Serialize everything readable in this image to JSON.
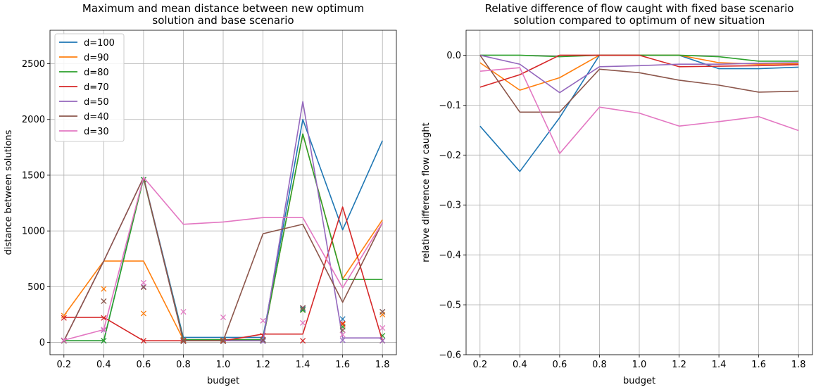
{
  "chart_data": [
    {
      "type": "line",
      "title": "Maximum and mean distance between new optimum\nsolution and base scenario",
      "xlabel": "budget",
      "ylabel": "distance between solutions",
      "xlim": [
        0.13,
        1.87
      ],
      "ylim": [
        -110,
        2800
      ],
      "xticks": [
        0.2,
        0.4,
        0.6,
        0.8,
        1.0,
        1.2,
        1.4,
        1.6,
        1.8
      ],
      "xtick_labels": [
        "0.2",
        "0.4",
        "0.6",
        "0.8",
        "1.0",
        "1.2",
        "1.4",
        "1.6",
        "1.8"
      ],
      "yticks": [
        0,
        500,
        1000,
        1500,
        2000,
        2500
      ],
      "ytick_labels": [
        "0",
        "500",
        "1000",
        "1500",
        "2000",
        "2500"
      ],
      "grid": true,
      "legend": "top-left",
      "x": [
        0.2,
        0.4,
        0.6,
        0.8,
        1.0,
        1.2,
        1.4,
        1.6,
        1.8
      ],
      "series": [
        {
          "name": "d=100",
          "color": "#1f77b4",
          "values": [
            15,
            15,
            1480,
            45,
            45,
            45,
            2000,
            1010,
            1810
          ],
          "markers": [
            15,
            15,
            1460,
            25,
            25,
            25,
            300,
            210,
            275
          ]
        },
        {
          "name": "d=90",
          "color": "#ff7f0e",
          "values": [
            240,
            730,
            730,
            25,
            25,
            25,
            1870,
            570,
            1100
          ],
          "markers": [
            240,
            480,
            260,
            20,
            20,
            20,
            290,
            160,
            250
          ]
        },
        {
          "name": "d=80",
          "color": "#2ca02c",
          "values": [
            15,
            15,
            1470,
            25,
            25,
            25,
            1870,
            565,
            565
          ],
          "markers": [
            15,
            15,
            1460,
            15,
            15,
            15,
            290,
            140,
            60
          ]
        },
        {
          "name": "d=70",
          "color": "#d62728",
          "values": [
            225,
            225,
            15,
            15,
            15,
            75,
            75,
            1215,
            15
          ],
          "markers": [
            220,
            220,
            15,
            15,
            15,
            60,
            15,
            170,
            15
          ]
        },
        {
          "name": "d=50",
          "color": "#9467bd",
          "values": [
            15,
            730,
            1480,
            15,
            15,
            15,
            2160,
            40,
            40
          ],
          "markers": [
            15,
            110,
            500,
            10,
            10,
            10,
            310,
            20,
            15
          ]
        },
        {
          "name": "d=40",
          "color": "#8c564b",
          "values": [
            15,
            730,
            1480,
            15,
            15,
            975,
            1060,
            360,
            1075
          ],
          "markers": [
            15,
            370,
            495,
            10,
            10,
            20,
            310,
            110,
            275
          ]
        },
        {
          "name": "d=30",
          "color": "#e377c2",
          "values": [
            20,
            115,
            1480,
            1060,
            1080,
            1120,
            1120,
            490,
            1075
          ],
          "markers": [
            20,
            115,
            535,
            275,
            225,
            195,
            175,
            70,
            130
          ]
        }
      ]
    },
    {
      "type": "line",
      "title": "Relative difference of flow caught with fixed base scenario\nsolution compared to optimum of new situation",
      "xlabel": "budget",
      "ylabel": "relative difference flow caught",
      "xlim": [
        0.13,
        1.87
      ],
      "ylim": [
        -0.6,
        0.05
      ],
      "xticks": [
        0.2,
        0.4,
        0.6,
        0.8,
        1.0,
        1.2,
        1.4,
        1.6,
        1.8
      ],
      "xtick_labels": [
        "0.2",
        "0.4",
        "0.6",
        "0.8",
        "1.0",
        "1.2",
        "1.4",
        "1.6",
        "1.8"
      ],
      "yticks": [
        0.0,
        -0.1,
        -0.2,
        -0.3,
        -0.4,
        -0.5,
        -0.6
      ],
      "ytick_labels": [
        "0.0",
        "−0.1",
        "−0.2",
        "−0.3",
        "−0.4",
        "−0.5",
        "−0.6"
      ],
      "grid": true,
      "x": [
        0.2,
        0.4,
        0.6,
        0.8,
        1.0,
        1.2,
        1.4,
        1.6,
        1.8
      ],
      "series": [
        {
          "color": "#1f77b4",
          "values": [
            -0.142,
            -0.233,
            -0.125,
            0.0,
            0.0,
            0.0,
            -0.027,
            -0.027,
            -0.024
          ]
        },
        {
          "color": "#ff7f0e",
          "values": [
            -0.015,
            -0.07,
            -0.045,
            0.0,
            0.0,
            0.0,
            -0.015,
            -0.018,
            -0.017
          ]
        },
        {
          "color": "#2ca02c",
          "values": [
            0.0,
            0.0,
            -0.003,
            0.0,
            0.0,
            0.0,
            -0.003,
            -0.012,
            -0.012
          ]
        },
        {
          "color": "#d62728",
          "values": [
            -0.064,
            -0.039,
            0.0,
            0.0,
            0.0,
            -0.023,
            -0.022,
            -0.021,
            -0.019
          ]
        },
        {
          "color": "#9467bd",
          "values": [
            0.0,
            -0.018,
            -0.075,
            -0.023,
            -0.021,
            -0.018,
            -0.018,
            -0.016,
            -0.015
          ]
        },
        {
          "color": "#8c564b",
          "values": [
            0.0,
            -0.114,
            -0.114,
            -0.028,
            -0.035,
            -0.05,
            -0.06,
            -0.074,
            -0.072
          ]
        },
        {
          "color": "#e377c2",
          "values": [
            -0.032,
            -0.025,
            -0.197,
            -0.104,
            -0.116,
            -0.142,
            -0.133,
            -0.123,
            -0.151
          ]
        }
      ]
    }
  ]
}
